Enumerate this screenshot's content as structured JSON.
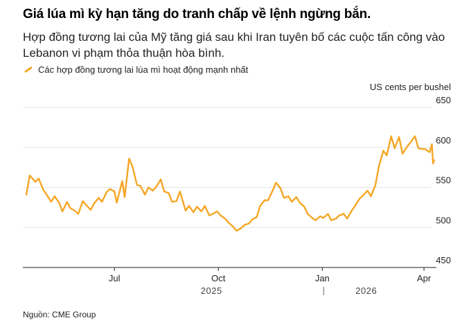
{
  "header": {
    "title": "Giá lúa mì kỳ hạn tăng do tranh chấp về lệnh ngừng bắn.",
    "subtitle": "Hợp đồng tương lai của Mỹ tăng giá sau khi Iran tuyên bố các cuộc tấn công vào Lebanon vi phạm thỏa thuận hòa bình."
  },
  "legend": {
    "label": "Các hợp đồng tương lai lúa mì hoạt động mạnh nhất",
    "color": "#f5a623"
  },
  "footer": {
    "source": "Nguồn: CME Group"
  },
  "chart_data": {
    "type": "line",
    "title": "Giá lúa mì kỳ hạn tăng do tranh chấp về lệnh ngừng bắn.",
    "ylabel": "US cents per bushel",
    "ylim": [
      450,
      650
    ],
    "yticks": [
      650,
      600,
      550,
      500,
      450
    ],
    "x_domain": [
      "2025-04-14",
      "2026-04-23"
    ],
    "xticks": [
      {
        "date": "2025-07-01",
        "label": "Jul"
      },
      {
        "date": "2025-10-01",
        "label": "Oct"
      },
      {
        "date": "2026-01-01",
        "label": "Jan"
      },
      {
        "date": "2026-04-01",
        "label": "Apr"
      }
    ],
    "year_labels": [
      {
        "date": "2025-10-01",
        "label": "2025"
      },
      {
        "date": "2026-02-15",
        "label": "2026"
      }
    ],
    "year_divider": "2026-01-01",
    "series": [
      {
        "name": "Các hợp đồng tương lai lúa mì hoạt động mạnh nhất",
        "color": "#f5a623",
        "points": [
          [
            "2025-04-14",
            541
          ],
          [
            "2025-04-17",
            565
          ],
          [
            "2025-04-22",
            557
          ],
          [
            "2025-04-25",
            561
          ],
          [
            "2025-04-29",
            547
          ],
          [
            "2025-05-02",
            541
          ],
          [
            "2025-05-06",
            532
          ],
          [
            "2025-05-09",
            539
          ],
          [
            "2025-05-13",
            531
          ],
          [
            "2025-05-16",
            520
          ],
          [
            "2025-05-20",
            532
          ],
          [
            "2025-05-23",
            524
          ],
          [
            "2025-05-27",
            521
          ],
          [
            "2025-05-30",
            517
          ],
          [
            "2025-06-03",
            533
          ],
          [
            "2025-06-06",
            528
          ],
          [
            "2025-06-10",
            522
          ],
          [
            "2025-06-13",
            530
          ],
          [
            "2025-06-17",
            537
          ],
          [
            "2025-06-20",
            532
          ],
          [
            "2025-06-24",
            544
          ],
          [
            "2025-06-27",
            548
          ],
          [
            "2025-07-01",
            545
          ],
          [
            "2025-07-03",
            531
          ],
          [
            "2025-07-08",
            558
          ],
          [
            "2025-07-10",
            538
          ],
          [
            "2025-07-14",
            586
          ],
          [
            "2025-07-17",
            576
          ],
          [
            "2025-07-21",
            553
          ],
          [
            "2025-07-24",
            552
          ],
          [
            "2025-07-28",
            541
          ],
          [
            "2025-07-31",
            550
          ],
          [
            "2025-08-04",
            546
          ],
          [
            "2025-08-07",
            551
          ],
          [
            "2025-08-11",
            560
          ],
          [
            "2025-08-14",
            545
          ],
          [
            "2025-08-18",
            543
          ],
          [
            "2025-08-21",
            532
          ],
          [
            "2025-08-25",
            533
          ],
          [
            "2025-08-28",
            545
          ],
          [
            "2025-09-02",
            521
          ],
          [
            "2025-09-05",
            527
          ],
          [
            "2025-09-09",
            519
          ],
          [
            "2025-09-12",
            526
          ],
          [
            "2025-09-16",
            520
          ],
          [
            "2025-09-19",
            527
          ],
          [
            "2025-09-23",
            515
          ],
          [
            "2025-09-26",
            517
          ],
          [
            "2025-09-30",
            520
          ],
          [
            "2025-10-03",
            515
          ],
          [
            "2025-10-07",
            511
          ],
          [
            "2025-10-10",
            506
          ],
          [
            "2025-10-14",
            501
          ],
          [
            "2025-10-17",
            496
          ],
          [
            "2025-10-21",
            499
          ],
          [
            "2025-10-24",
            503
          ],
          [
            "2025-10-28",
            505
          ],
          [
            "2025-10-31",
            510
          ],
          [
            "2025-11-04",
            513
          ],
          [
            "2025-11-07",
            527
          ],
          [
            "2025-11-11",
            534
          ],
          [
            "2025-11-14",
            534
          ],
          [
            "2025-11-18",
            546
          ],
          [
            "2025-11-21",
            556
          ],
          [
            "2025-11-25",
            549
          ],
          [
            "2025-11-28",
            537
          ],
          [
            "2025-12-02",
            539
          ],
          [
            "2025-12-05",
            532
          ],
          [
            "2025-12-09",
            538
          ],
          [
            "2025-12-12",
            531
          ],
          [
            "2025-12-16",
            526
          ],
          [
            "2025-12-19",
            517
          ],
          [
            "2025-12-23",
            512
          ],
          [
            "2025-12-26",
            509
          ],
          [
            "2025-12-30",
            514
          ],
          [
            "2026-01-02",
            512
          ],
          [
            "2026-01-06",
            517
          ],
          [
            "2026-01-09",
            509
          ],
          [
            "2026-01-13",
            511
          ],
          [
            "2026-01-16",
            515
          ],
          [
            "2026-01-20",
            517
          ],
          [
            "2026-01-23",
            511
          ],
          [
            "2026-01-27",
            521
          ],
          [
            "2026-01-30",
            527
          ],
          [
            "2026-02-03",
            536
          ],
          [
            "2026-02-06",
            540
          ],
          [
            "2026-02-10",
            546
          ],
          [
            "2026-02-13",
            539
          ],
          [
            "2026-02-17",
            553
          ],
          [
            "2026-02-20",
            576
          ],
          [
            "2026-02-24",
            596
          ],
          [
            "2026-02-27",
            590
          ],
          [
            "2026-03-03",
            614
          ],
          [
            "2026-03-06",
            599
          ],
          [
            "2026-03-10",
            613
          ],
          [
            "2026-03-13",
            592
          ],
          [
            "2026-03-17",
            601
          ],
          [
            "2026-03-20",
            606
          ],
          [
            "2026-03-24",
            614
          ],
          [
            "2026-03-27",
            599
          ],
          [
            "2026-03-31",
            598
          ],
          [
            "2026-04-02",
            598
          ],
          [
            "2026-04-06",
            594
          ],
          [
            "2026-04-08",
            604
          ],
          [
            "2026-04-09",
            580
          ],
          [
            "2026-04-10",
            584
          ]
        ]
      }
    ]
  }
}
